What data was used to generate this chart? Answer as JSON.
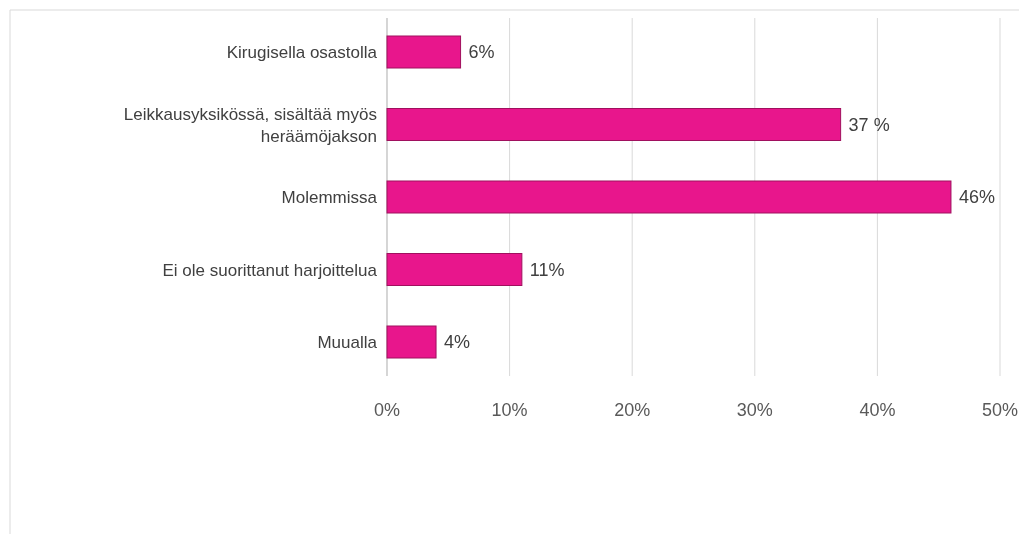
{
  "chart_data": {
    "type": "bar",
    "orientation": "horizontal",
    "categories": [
      "Kirugisella osastolla",
      "Leikkausyksikössä, sisältää myös heräämöjakson",
      "Molemmissa",
      "Ei ole suorittanut harjoittelua",
      "Muualla"
    ],
    "values": [
      6,
      37,
      46,
      11,
      4
    ],
    "value_labels": [
      "6%",
      "37 %",
      "46%",
      "11%",
      "4%"
    ],
    "color": "#e8168c",
    "xlim": [
      0,
      50
    ],
    "xticks": [
      {
        "value": 0,
        "label": "0%"
      },
      {
        "value": 10,
        "label": "10%"
      },
      {
        "value": 20,
        "label": "20%"
      },
      {
        "value": 30,
        "label": "30%"
      },
      {
        "value": 40,
        "label": "40%"
      },
      {
        "value": 50,
        "label": "50%"
      }
    ],
    "grid": "x"
  }
}
